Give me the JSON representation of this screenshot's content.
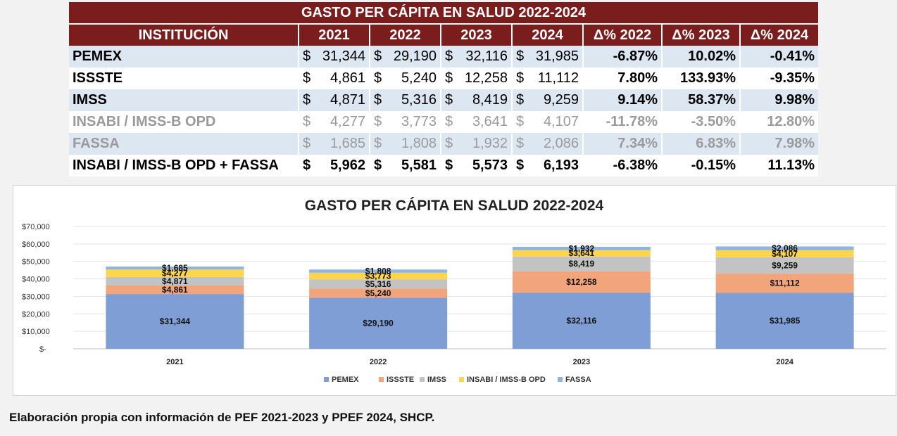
{
  "table": {
    "title": "GASTO PER CÁPITA EN SALUD 2022-2024",
    "headers": [
      "INSTITUCIÓN",
      "2021",
      "2022",
      "2023",
      "2024",
      "Δ% 2022",
      "Δ% 2023",
      "Δ% 2024"
    ],
    "rows": [
      {
        "name": "PEMEX",
        "values": [
          "$31,344",
          "$29,190",
          "$32,116",
          "$31,985"
        ],
        "pct": [
          "-6.87%",
          "10.02%",
          "-0.41%"
        ],
        "style": "light"
      },
      {
        "name": "ISSSTE",
        "values": [
          "$ 4,861",
          "$ 5,240",
          "$12,258",
          "$11,112"
        ],
        "pct": [
          "7.80%",
          "133.93%",
          "-9.35%"
        ],
        "style": "white"
      },
      {
        "name": "IMSS",
        "values": [
          "$ 4,871",
          "$ 5,316",
          "$ 8,419",
          "$ 9,259"
        ],
        "pct": [
          "9.14%",
          "58.37%",
          "9.98%"
        ],
        "style": "light"
      },
      {
        "name": "INSABI / IMSS-B OPD",
        "values": [
          "$ 4,277",
          "$ 3,773",
          "$ 3,641",
          "$ 4,107"
        ],
        "pct": [
          "-11.78%",
          "-3.50%",
          "12.80%"
        ],
        "style": "white grey"
      },
      {
        "name": "FASSA",
        "values": [
          "$ 1,685",
          "$ 1,808",
          "$ 1,932",
          "$ 2,086"
        ],
        "pct": [
          "7.34%",
          "6.83%",
          "7.98%"
        ],
        "style": "light grey"
      },
      {
        "name": "INSABI / IMSS-B OPD + FASSA",
        "values": [
          "$ 5,962",
          "$ 5,581",
          "$ 5,573",
          "$ 6,193"
        ],
        "pct": [
          "-6.38%",
          "-0.15%",
          "11.13%"
        ],
        "style": "white bold"
      }
    ]
  },
  "chart_data": {
    "type": "bar",
    "stacked": true,
    "title": "GASTO PER CÁPITA EN SALUD 2022-2024",
    "categories": [
      "2021",
      "2022",
      "2023",
      "2024"
    ],
    "series": [
      {
        "name": "PEMEX",
        "color": "#7f9ed6",
        "values": [
          31344,
          29190,
          32116,
          31985
        ],
        "labels": [
          "$31,344",
          "$29,190",
          "$32,116",
          "$31,985"
        ]
      },
      {
        "name": "ISSSTE",
        "color": "#f2a57a",
        "values": [
          4861,
          5240,
          12258,
          11112
        ],
        "labels": [
          "$4,861",
          "$5,240",
          "$12,258",
          "$11,112"
        ]
      },
      {
        "name": "IMSS",
        "color": "#c3c3c3",
        "values": [
          4871,
          5316,
          8419,
          9259
        ],
        "labels": [
          "$4,871",
          "$5,316",
          "$8,419",
          "$9,259"
        ]
      },
      {
        "name": "INSABI / IMSS-B OPD",
        "color": "#ffd54a",
        "values": [
          4277,
          3773,
          3641,
          4107
        ],
        "labels": [
          "$4,277",
          "$3,773",
          "$3,641",
          "$4,107"
        ]
      },
      {
        "name": "FASSA",
        "color": "#8fb4e0",
        "values": [
          1685,
          1808,
          1932,
          2086
        ],
        "labels": [
          "$1,685",
          "$1,808",
          "$1,932",
          "$2,086"
        ]
      }
    ],
    "yticks": [
      0,
      10000,
      20000,
      30000,
      40000,
      50000,
      60000,
      70000
    ],
    "ytick_labels": [
      "$-",
      "$10,000",
      "$20,000",
      "$30,000",
      "$40,000",
      "$50,000",
      "$60,000",
      "$70,000"
    ],
    "ylim": [
      0,
      70000
    ],
    "grid": true,
    "legend_position": "bottom"
  },
  "footer": {
    "source": "Elaboración propia con información de PEF 2021-2023 y PPEF 2024, SHCP."
  }
}
